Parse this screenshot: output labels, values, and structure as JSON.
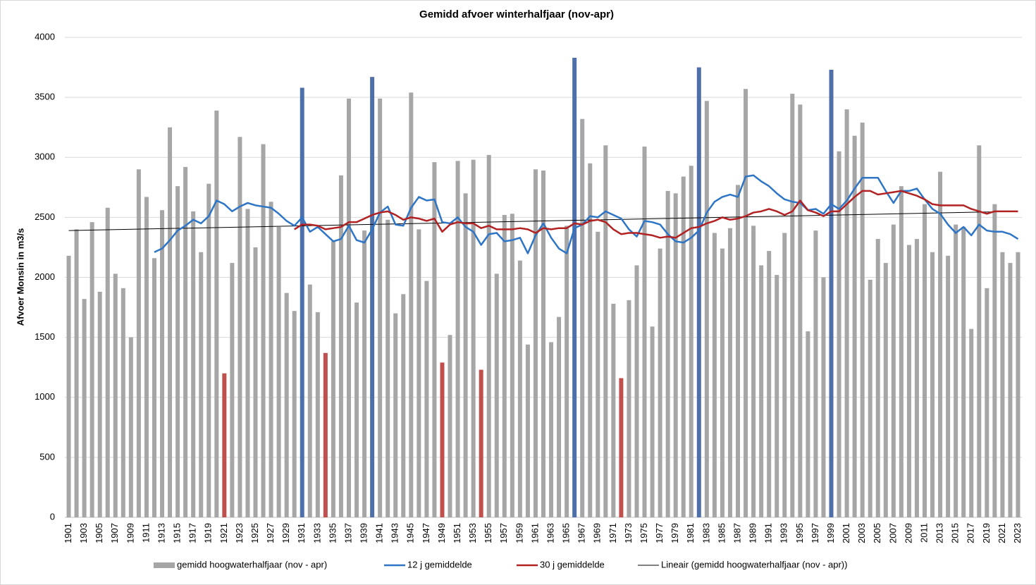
{
  "chart_data": {
    "type": "bar",
    "title": "Gemidd  afvoer winterhalfjaar (nov-apr)",
    "y_label": "Afvoer Monsin in m3/s",
    "categories": [
      "1901",
      null,
      "1903",
      null,
      "1905",
      null,
      "1907",
      null,
      "1909",
      null,
      "1911",
      null,
      "1913",
      null,
      "1915",
      null,
      "1917",
      null,
      "1919",
      null,
      "1921",
      null,
      "1923",
      null,
      "1925",
      null,
      "1927",
      null,
      "1929",
      null,
      "1931",
      null,
      "1933",
      null,
      "1935",
      null,
      "1937",
      null,
      "1939",
      null,
      "1941",
      null,
      "1943",
      null,
      "1945",
      null,
      "1947",
      null,
      "1949",
      null,
      "1951",
      null,
      "1953",
      null,
      "1955",
      null,
      "1957",
      null,
      "1959",
      null,
      "1961",
      null,
      "1963",
      null,
      "1965",
      null,
      "1967",
      null,
      "1969",
      null,
      "1971",
      null,
      "1973",
      null,
      "1975",
      null,
      "1977",
      null,
      "1979",
      null,
      "1981",
      null,
      "1983",
      null,
      "1985",
      null,
      "1987",
      null,
      "1989",
      null,
      "1991",
      null,
      "1993",
      null,
      "1995",
      null,
      "1997",
      null,
      "1999",
      null,
      "2001",
      null,
      "2003",
      null,
      "2005",
      null,
      "2007",
      null,
      "2009",
      null,
      "2011",
      null,
      "2013",
      null,
      "2015",
      null,
      "2017",
      null,
      "2019",
      null,
      "2021",
      null,
      "2023"
    ],
    "series": [
      {
        "name": "gemidd hoogwaterhalfjaar  (nov - apr)",
        "kind": "bar",
        "color": "#a6a6a6",
        "values": [
          2180,
          2400,
          1820,
          2460,
          1880,
          2580,
          2030,
          1910,
          1500,
          2900,
          2670,
          2160,
          2560,
          3250,
          2760,
          2920,
          2550,
          2210,
          2780,
          3390,
          1200,
          2120,
          3170,
          2570,
          2250,
          3110,
          2630,
          2420,
          1870,
          1720,
          3580,
          1940,
          1710,
          1370,
          2300,
          2850,
          3490,
          1790,
          2390,
          3670,
          3490,
          2480,
          1700,
          1860,
          3540,
          2400,
          1970,
          2960,
          1290,
          1520,
          2970,
          2700,
          2980,
          1230,
          3020,
          2030,
          2520,
          2530,
          2140,
          1440,
          2900,
          2890,
          1460,
          1670,
          2430,
          3830,
          3320,
          2950,
          2380,
          3100,
          1780,
          1160,
          1810,
          2100,
          3090,
          1590,
          2240,
          2720,
          2700,
          2840,
          2930,
          3750,
          3470,
          2370,
          2240,
          2410,
          2770,
          3570,
          2430,
          2100,
          2220,
          2020,
          2370,
          3530,
          3440,
          1550,
          2390,
          2000,
          3730,
          3050,
          3400,
          3180,
          3290,
          1980,
          2320,
          2120,
          2440,
          2760,
          2270,
          2320,
          2610,
          2210,
          2880,
          2180,
          2440,
          2420,
          1570,
          3100,
          1910,
          2610,
          2210,
          2120,
          2210
        ],
        "colors": [
          "#a6a6a6",
          "#a6a6a6",
          "#a6a6a6",
          "#a6a6a6",
          "#a6a6a6",
          "#a6a6a6",
          "#a6a6a6",
          "#a6a6a6",
          "#a6a6a6",
          "#a6a6a6",
          "#a6a6a6",
          "#a6a6a6",
          "#a6a6a6",
          "#a6a6a6",
          "#a6a6a6",
          "#a6a6a6",
          "#a6a6a6",
          "#a6a6a6",
          "#a6a6a6",
          "#a6a6a6",
          "#c0504d",
          "#a6a6a6",
          "#a6a6a6",
          "#a6a6a6",
          "#a6a6a6",
          "#a6a6a6",
          "#a6a6a6",
          "#a6a6a6",
          "#a6a6a6",
          "#a6a6a6",
          "#4f6fa8",
          "#a6a6a6",
          "#a6a6a6",
          "#c0504d",
          "#a6a6a6",
          "#a6a6a6",
          "#a6a6a6",
          "#a6a6a6",
          "#a6a6a6",
          "#4f6fa8",
          "#a6a6a6",
          "#a6a6a6",
          "#a6a6a6",
          "#a6a6a6",
          "#a6a6a6",
          "#a6a6a6",
          "#a6a6a6",
          "#a6a6a6",
          "#c0504d",
          "#a6a6a6",
          "#a6a6a6",
          "#a6a6a6",
          "#a6a6a6",
          "#c0504d",
          "#a6a6a6",
          "#a6a6a6",
          "#a6a6a6",
          "#a6a6a6",
          "#a6a6a6",
          "#a6a6a6",
          "#a6a6a6",
          "#a6a6a6",
          "#a6a6a6",
          "#a6a6a6",
          "#a6a6a6",
          "#4f6fa8",
          "#a6a6a6",
          "#a6a6a6",
          "#a6a6a6",
          "#a6a6a6",
          "#a6a6a6",
          "#c0504d",
          "#a6a6a6",
          "#a6a6a6",
          "#a6a6a6",
          "#a6a6a6",
          "#a6a6a6",
          "#a6a6a6",
          "#a6a6a6",
          "#a6a6a6",
          "#a6a6a6",
          "#4f6fa8",
          "#a6a6a6",
          "#a6a6a6",
          "#a6a6a6",
          "#a6a6a6",
          "#a6a6a6",
          "#a6a6a6",
          "#a6a6a6",
          "#a6a6a6",
          "#a6a6a6",
          "#a6a6a6",
          "#a6a6a6",
          "#a6a6a6",
          "#a6a6a6",
          "#a6a6a6",
          "#a6a6a6",
          "#a6a6a6",
          "#4f6fa8",
          "#a6a6a6",
          "#a6a6a6",
          "#a6a6a6",
          "#a6a6a6",
          "#a6a6a6",
          "#a6a6a6",
          "#a6a6a6",
          "#a6a6a6",
          "#a6a6a6",
          "#a6a6a6",
          "#a6a6a6",
          "#a6a6a6",
          "#a6a6a6",
          "#a6a6a6",
          "#a6a6a6",
          "#a6a6a6",
          "#a6a6a6",
          "#a6a6a6",
          "#a6a6a6",
          "#a6a6a6",
          "#a6a6a6",
          "#a6a6a6",
          "#a6a6a6",
          "#a6a6a6"
        ]
      },
      {
        "name": "12 j gemiddelde",
        "kind": "line",
        "color": "#2e75c6",
        "values": [
          null,
          null,
          null,
          null,
          null,
          null,
          null,
          null,
          null,
          null,
          null,
          2210,
          2240,
          2310,
          2390,
          2430,
          2480,
          2450,
          2510,
          2640,
          2610,
          2550,
          2590,
          2620,
          2600,
          2590,
          2580,
          2530,
          2470,
          2430,
          2500,
          2380,
          2420,
          2360,
          2300,
          2320,
          2430,
          2310,
          2290,
          2400,
          2540,
          2590,
          2440,
          2430,
          2580,
          2670,
          2640,
          2650,
          2460,
          2450,
          2500,
          2420,
          2380,
          2270,
          2360,
          2370,
          2300,
          2310,
          2330,
          2200,
          2350,
          2450,
          2330,
          2240,
          2200,
          2410,
          2440,
          2510,
          2500,
          2550,
          2520,
          2490,
          2400,
          2340,
          2470,
          2460,
          2440,
          2360,
          2300,
          2290,
          2330,
          2390,
          2540,
          2630,
          2670,
          2690,
          2670,
          2840,
          2850,
          2800,
          2760,
          2700,
          2650,
          2630,
          2620,
          2560,
          2570,
          2530,
          2610,
          2570,
          2640,
          2740,
          2830,
          2830,
          2830,
          2720,
          2620,
          2720,
          2720,
          2740,
          2650,
          2570,
          2530,
          2440,
          2370,
          2420,
          2350,
          2440,
          2390,
          2380,
          2380,
          2360,
          2320
        ]
      },
      {
        "name": "30 j gemiddelde",
        "kind": "line",
        "color": "#b22222",
        "values": [
          null,
          null,
          null,
          null,
          null,
          null,
          null,
          null,
          null,
          null,
          null,
          null,
          null,
          null,
          null,
          null,
          null,
          null,
          null,
          null,
          null,
          null,
          null,
          null,
          null,
          null,
          null,
          null,
          null,
          2400,
          2440,
          2440,
          2430,
          2400,
          2410,
          2420,
          2460,
          2460,
          2490,
          2520,
          2540,
          2550,
          2520,
          2480,
          2500,
          2490,
          2470,
          2490,
          2380,
          2440,
          2460,
          2450,
          2450,
          2410,
          2430,
          2400,
          2400,
          2400,
          2410,
          2400,
          2370,
          2410,
          2400,
          2410,
          2410,
          2450,
          2440,
          2470,
          2480,
          2460,
          2400,
          2360,
          2370,
          2370,
          2360,
          2350,
          2330,
          2340,
          2330,
          2370,
          2410,
          2420,
          2450,
          2470,
          2500,
          2480,
          2490,
          2510,
          2540,
          2550,
          2570,
          2550,
          2520,
          2550,
          2640,
          2560,
          2540,
          2510,
          2550,
          2550,
          2610,
          2670,
          2720,
          2720,
          2690,
          2700,
          2710,
          2720,
          2700,
          2680,
          2650,
          2610,
          2600,
          2600,
          2600,
          2600,
          2570,
          2550,
          2530,
          2550,
          2550,
          2550,
          2550
        ]
      }
    ],
    "trend": {
      "name": "Lineair (gemidd hoogwaterhalfjaar  (nov - apr))",
      "color": "#000000",
      "values": [
        2390,
        2550
      ]
    },
    "ylim": [
      0,
      4000
    ],
    "yticks": [
      0,
      500,
      1000,
      1500,
      2000,
      2500,
      3000,
      3500,
      4000
    ],
    "grid": true
  }
}
